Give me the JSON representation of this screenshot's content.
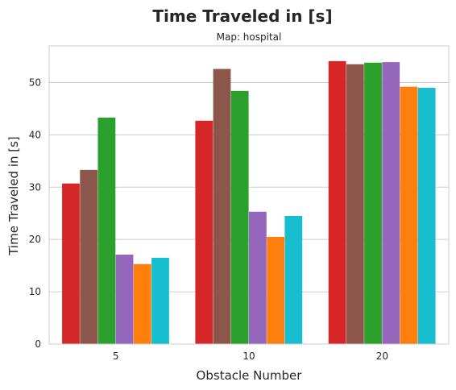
{
  "chart_data": {
    "type": "bar",
    "title": "Time Traveled in [s]",
    "subtitle": "Map: hospital",
    "xlabel": "Obstacle Number",
    "ylabel": "Time Traveled in [s]",
    "categories": [
      "5",
      "10",
      "20"
    ],
    "ylim": [
      0,
      57
    ],
    "yticks": [
      0,
      10,
      20,
      30,
      40,
      50
    ],
    "grid": "horizontal",
    "series": [
      {
        "color": "#d62728",
        "values": [
          30.7,
          42.7,
          54.1
        ]
      },
      {
        "color": "#8c564b",
        "values": [
          33.3,
          52.6,
          53.5
        ]
      },
      {
        "color": "#2ca02c",
        "values": [
          43.3,
          48.4,
          53.8
        ]
      },
      {
        "color": "#9467bd",
        "values": [
          17.1,
          25.3,
          53.9
        ]
      },
      {
        "color": "#ff7f0e",
        "values": [
          15.3,
          20.5,
          49.2
        ]
      },
      {
        "color": "#17becf",
        "values": [
          16.5,
          24.5,
          49.0
        ]
      }
    ]
  }
}
